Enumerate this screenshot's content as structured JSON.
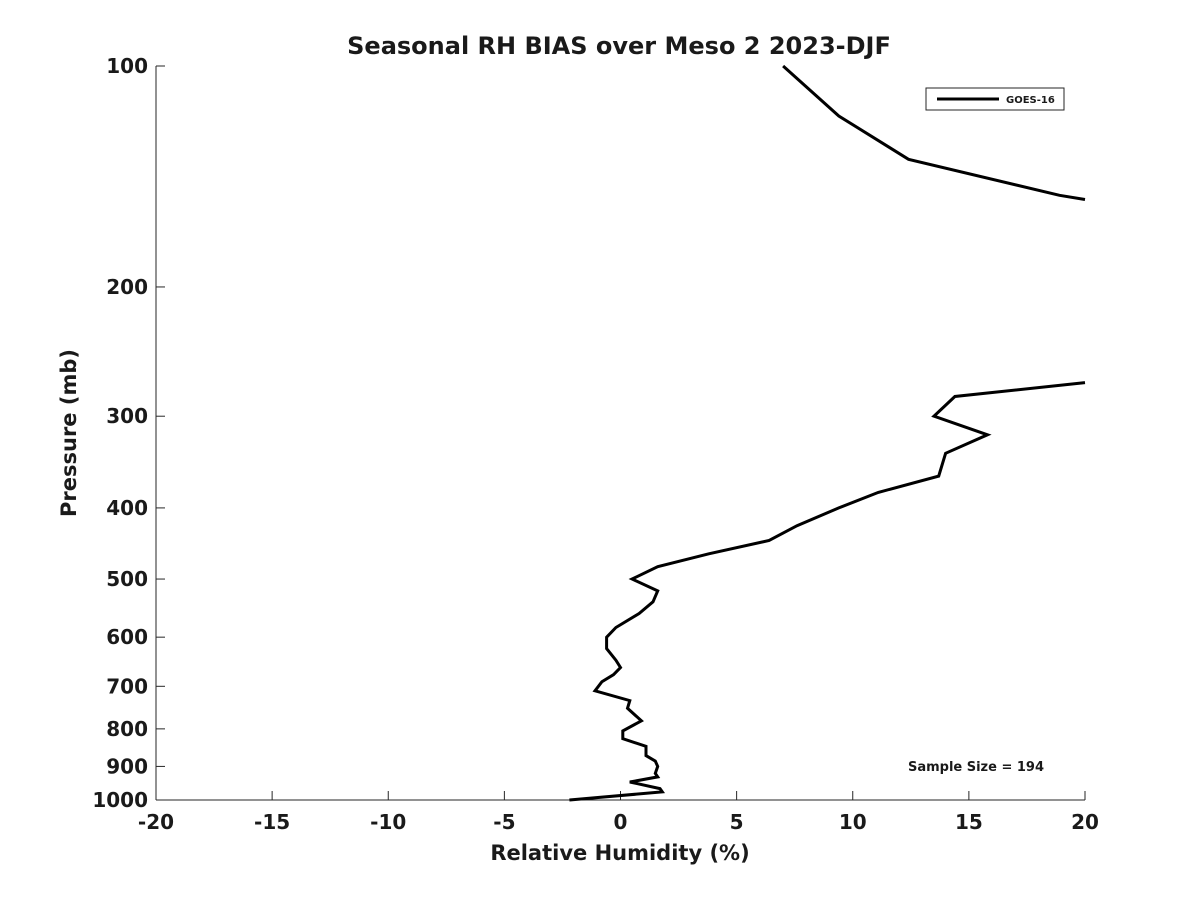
{
  "chart_data": {
    "type": "line",
    "title": "Seasonal RH BIAS over Meso 2  2023-DJF",
    "xlabel": "Relative Humidity (%)",
    "ylabel": "Pressure (mb)",
    "xlim": [
      -20,
      20
    ],
    "ylim": [
      100,
      1000
    ],
    "y_scale": "log",
    "y_reversed": true,
    "grid": false,
    "x_ticks": [
      -20,
      -15,
      -10,
      -5,
      0,
      5,
      10,
      15,
      20
    ],
    "y_ticks": [
      100,
      200,
      300,
      400,
      500,
      600,
      700,
      800,
      900,
      1000
    ],
    "legend": {
      "position": "top-right",
      "entries": [
        "GOES-16"
      ]
    },
    "annotations": [
      {
        "text": "Sample Size = 194",
        "position": "bottom-right"
      }
    ],
    "series": [
      {
        "name": "GOES-16",
        "color": "#000000",
        "segments": [
          [
            {
              "x": 7.0,
              "y": 100
            },
            {
              "x": 9.4,
              "y": 117
            },
            {
              "x": 12.4,
              "y": 134
            },
            {
              "x": 18.9,
              "y": 150
            },
            {
              "x": 20.0,
              "y": 152
            }
          ],
          [
            {
              "x": 20.0,
              "y": 270
            },
            {
              "x": 14.4,
              "y": 282
            },
            {
              "x": 13.5,
              "y": 300
            },
            {
              "x": 15.8,
              "y": 318
            },
            {
              "x": 14.0,
              "y": 337
            },
            {
              "x": 13.7,
              "y": 362
            },
            {
              "x": 11.1,
              "y": 381
            },
            {
              "x": 9.4,
              "y": 400
            },
            {
              "x": 7.6,
              "y": 423
            },
            {
              "x": 6.4,
              "y": 443
            },
            {
              "x": 3.8,
              "y": 462
            },
            {
              "x": 1.6,
              "y": 481
            },
            {
              "x": 0.5,
              "y": 500
            },
            {
              "x": 1.6,
              "y": 519
            },
            {
              "x": 1.4,
              "y": 537
            },
            {
              "x": 0.8,
              "y": 557
            },
            {
              "x": -0.2,
              "y": 582
            },
            {
              "x": -0.6,
              "y": 600
            },
            {
              "x": -0.6,
              "y": 622
            },
            {
              "x": -0.2,
              "y": 645
            },
            {
              "x": 0.0,
              "y": 660
            },
            {
              "x": -0.3,
              "y": 675
            },
            {
              "x": -0.8,
              "y": 690
            },
            {
              "x": -1.1,
              "y": 710
            },
            {
              "x": 0.4,
              "y": 732
            },
            {
              "x": 0.3,
              "y": 750
            },
            {
              "x": 0.9,
              "y": 780
            },
            {
              "x": 0.1,
              "y": 805
            },
            {
              "x": 0.1,
              "y": 825
            },
            {
              "x": 1.1,
              "y": 845
            },
            {
              "x": 1.1,
              "y": 870
            },
            {
              "x": 1.5,
              "y": 885
            },
            {
              "x": 1.6,
              "y": 900
            },
            {
              "x": 1.5,
              "y": 920
            },
            {
              "x": 1.6,
              "y": 930
            },
            {
              "x": 0.4,
              "y": 945
            },
            {
              "x": 1.7,
              "y": 965
            },
            {
              "x": 1.8,
              "y": 975
            },
            {
              "x": -2.2,
              "y": 1000
            }
          ]
        ]
      }
    ]
  }
}
